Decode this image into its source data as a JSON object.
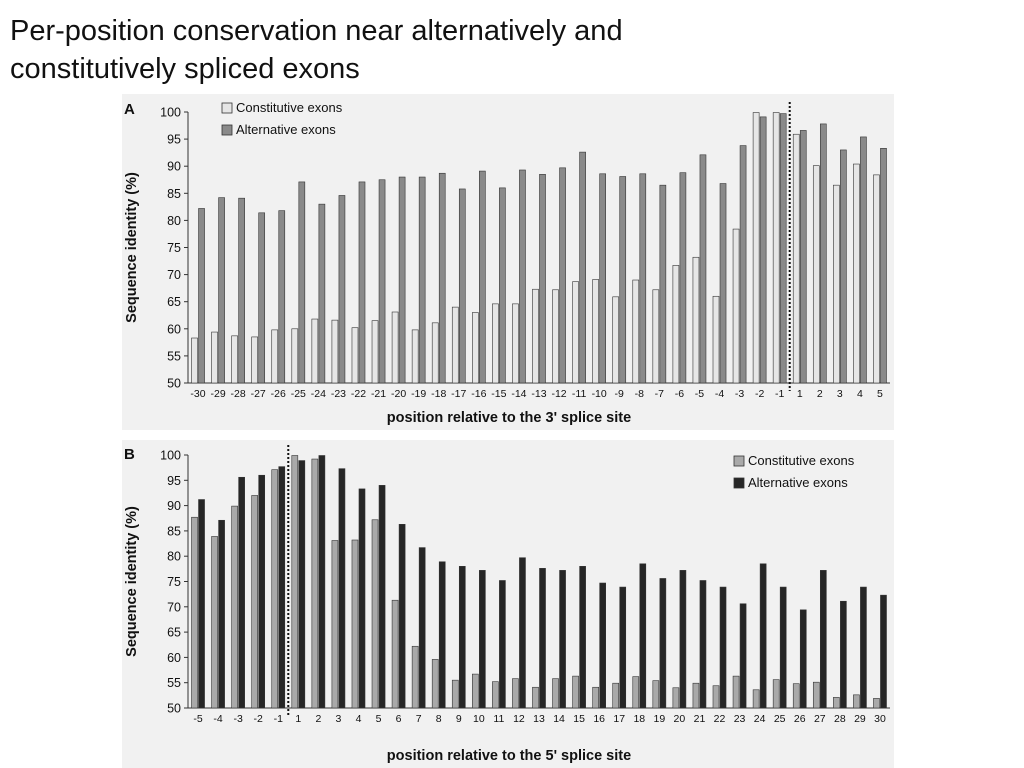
{
  "slide": {
    "title_line1": "Per-position conservation near alternatively and",
    "title_line2": "constitutively spliced exons"
  },
  "chart_data": [
    {
      "type": "bar",
      "panel_label": "A",
      "xlabel": "position relative to the 3' splice site",
      "ylabel": "Sequence identity (%)",
      "ylim": [
        50,
        100
      ],
      "yticks": [
        50,
        55,
        60,
        65,
        70,
        75,
        80,
        85,
        90,
        95,
        100
      ],
      "grid": false,
      "legend_position": "top-left",
      "splice_site_marker": "dotted line between -1 and 1",
      "categories": [
        "-30",
        "-29",
        "-28",
        "-27",
        "-26",
        "-25",
        "-24",
        "-23",
        "-22",
        "-21",
        "-20",
        "-19",
        "-18",
        "-17",
        "-16",
        "-15",
        "-14",
        "-13",
        "-12",
        "-11",
        "-10",
        "-9",
        "-8",
        "-7",
        "-6",
        "-5",
        "-4",
        "-3",
        "-2",
        "-1",
        "1",
        "2",
        "3",
        "4",
        "5"
      ],
      "series": [
        {
          "name": "Constitutive exons",
          "color": "#e6e6e6",
          "values": [
            58.3,
            59.4,
            58.7,
            58.5,
            59.8,
            60.0,
            61.8,
            61.6,
            60.2,
            61.5,
            63.1,
            59.8,
            61.1,
            64.0,
            63.0,
            64.6,
            64.6,
            67.3,
            67.2,
            68.7,
            69.1,
            65.9,
            69.0,
            67.2,
            71.7,
            73.2,
            66.0,
            78.4,
            99.9,
            99.9,
            95.9,
            90.1,
            86.5,
            90.4,
            88.4
          ]
        },
        {
          "name": "Alternative exons",
          "color": "#8a8a8a",
          "values": [
            82.2,
            84.2,
            84.1,
            81.4,
            81.8,
            87.1,
            83.0,
            84.6,
            87.1,
            87.5,
            88.0,
            88.0,
            88.7,
            85.8,
            89.1,
            86.0,
            89.3,
            88.5,
            89.7,
            92.6,
            88.6,
            88.1,
            88.6,
            86.5,
            88.8,
            92.1,
            86.8,
            93.8,
            99.1,
            99.7,
            96.6,
            97.8,
            93.0,
            95.4,
            93.3
          ]
        }
      ]
    },
    {
      "type": "bar",
      "panel_label": "B",
      "xlabel": "position relative to the 5' splice site",
      "ylabel": "Sequence identity (%)",
      "ylim": [
        50,
        100
      ],
      "yticks": [
        50,
        55,
        60,
        65,
        70,
        75,
        80,
        85,
        90,
        95,
        100
      ],
      "grid": false,
      "legend_position": "top-right",
      "splice_site_marker": "dotted line between -1 and 1",
      "categories": [
        "-5",
        "-4",
        "-3",
        "-2",
        "-1",
        "1",
        "2",
        "3",
        "4",
        "5",
        "6",
        "7",
        "8",
        "9",
        "10",
        "11",
        "12",
        "13",
        "14",
        "15",
        "16",
        "17",
        "18",
        "19",
        "20",
        "21",
        "22",
        "23",
        "24",
        "25",
        "26",
        "27",
        "28",
        "29",
        "30"
      ],
      "series": [
        {
          "name": "Constitutive exons",
          "color": "#a9a9a9",
          "values": [
            87.7,
            83.9,
            89.9,
            92.0,
            97.1,
            99.9,
            99.2,
            83.1,
            83.2,
            87.2,
            71.3,
            62.2,
            59.6,
            55.5,
            56.7,
            55.2,
            55.8,
            54.1,
            55.8,
            56.3,
            54.1,
            54.9,
            56.2,
            55.4,
            54.0,
            54.9,
            54.4,
            56.3,
            53.6,
            55.6,
            54.8,
            55.1,
            52.1,
            52.6,
            51.9
          ]
        },
        {
          "name": "Alternative exons",
          "color": "#262626",
          "values": [
            91.2,
            87.1,
            95.6,
            96.0,
            97.7,
            98.9,
            99.9,
            97.3,
            93.3,
            94.0,
            86.3,
            81.7,
            78.9,
            78.0,
            77.2,
            75.2,
            79.7,
            77.6,
            77.2,
            78.0,
            74.7,
            73.9,
            78.5,
            75.6,
            77.2,
            75.2,
            73.9,
            70.6,
            78.5,
            73.9,
            69.4,
            77.2,
            71.1,
            73.9,
            72.3
          ]
        }
      ]
    }
  ]
}
